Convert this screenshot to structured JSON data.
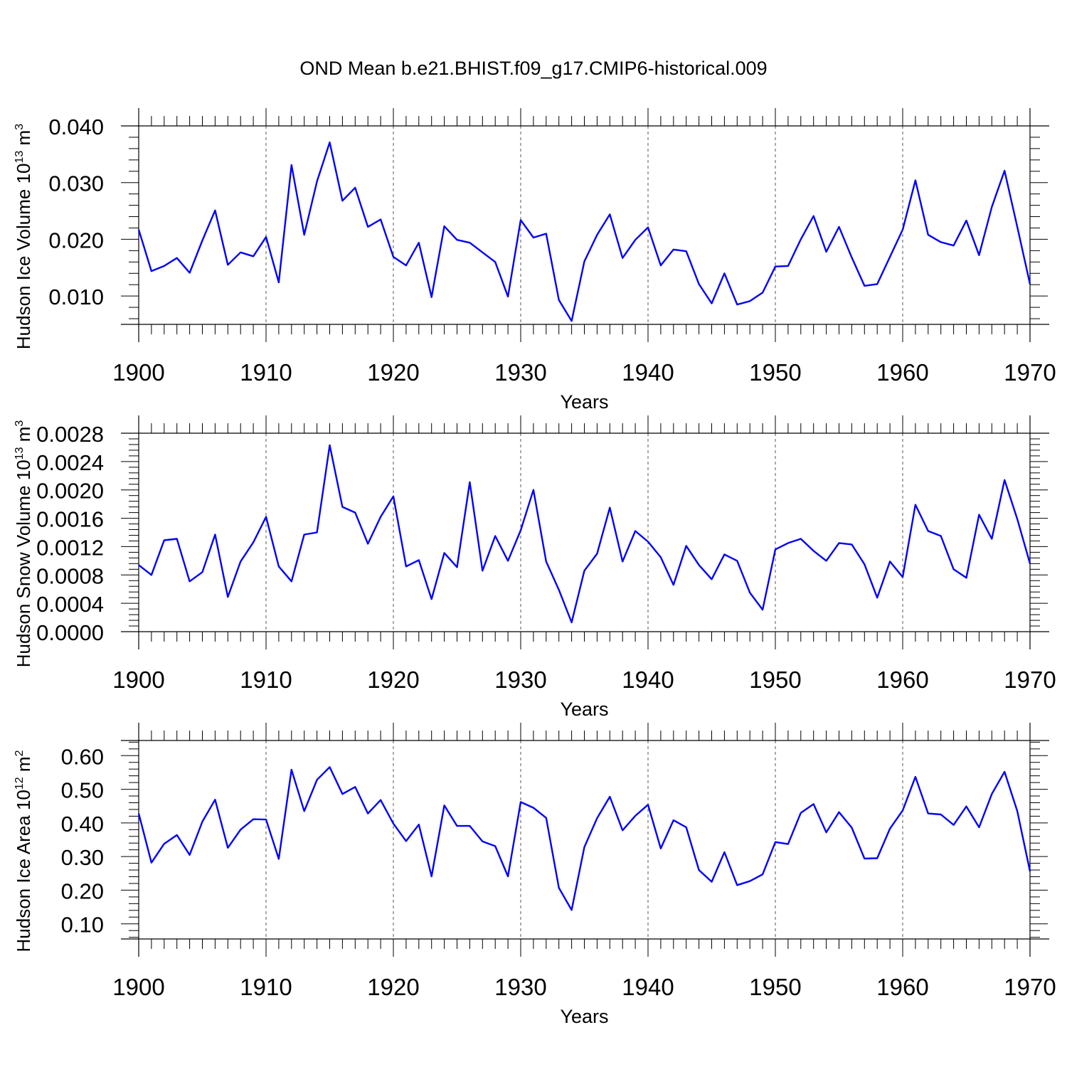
{
  "title": "OND Mean b.e21.BHIST.f09_g17.CMIP6-historical.009",
  "colors": {
    "line": "#0000ff",
    "axis": "#000000",
    "grid": "#555555"
  },
  "chart_data": [
    {
      "type": "line",
      "ylabel": "Hudson Ice Volume 10",
      "ylabel_exp": "13",
      "ylabel_unit": "m",
      "ylabel_unit_exp": "3",
      "xlabel": "Years",
      "xlim": [
        1900,
        1970
      ],
      "ylim": [
        0.005,
        0.04
      ],
      "yticks": [
        0.01,
        0.02,
        0.03,
        0.04
      ],
      "ytick_labels": [
        "0.010",
        "0.020",
        "0.030",
        "0.040"
      ],
      "xticks": [
        1900,
        1910,
        1920,
        1930,
        1940,
        1950,
        1960,
        1970
      ],
      "xtick_labels": [
        "1900",
        "1910",
        "1920",
        "1930",
        "1940",
        "1950",
        "1960",
        "1970"
      ],
      "grid": "vertical dashed at decades",
      "x": [
        1900,
        1901,
        1902,
        1903,
        1904,
        1905,
        1906,
        1907,
        1908,
        1909,
        1910,
        1911,
        1912,
        1913,
        1914,
        1915,
        1916,
        1917,
        1918,
        1919,
        1920,
        1921,
        1922,
        1923,
        1924,
        1925,
        1926,
        1927,
        1928,
        1929,
        1930,
        1931,
        1932,
        1933,
        1934,
        1935,
        1936,
        1937,
        1938,
        1939,
        1940,
        1941,
        1942,
        1943,
        1944,
        1945,
        1946,
        1947,
        1948,
        1949,
        1950,
        1951,
        1952,
        1953,
        1954,
        1955,
        1956,
        1957,
        1958,
        1959,
        1960,
        1961,
        1962,
        1963,
        1964,
        1965,
        1966,
        1967,
        1968,
        1969,
        1970
      ],
      "values": [
        0.0217,
        0.0144,
        0.0153,
        0.0167,
        0.0141,
        0.0198,
        0.0251,
        0.0155,
        0.0177,
        0.017,
        0.0204,
        0.0124,
        0.0331,
        0.0208,
        0.0302,
        0.0371,
        0.0268,
        0.0291,
        0.0222,
        0.0235,
        0.0169,
        0.0154,
        0.0194,
        0.0098,
        0.0223,
        0.0199,
        0.0194,
        0.0177,
        0.016,
        0.0099,
        0.0234,
        0.0203,
        0.021,
        0.0093,
        0.0056,
        0.0161,
        0.0208,
        0.0244,
        0.0167,
        0.0199,
        0.0221,
        0.0154,
        0.0182,
        0.0179,
        0.0121,
        0.0087,
        0.014,
        0.0085,
        0.0091,
        0.0106,
        0.0152,
        0.0153,
        0.02,
        0.0241,
        0.0178,
        0.0222,
        0.0168,
        0.0118,
        0.0121,
        0.0169,
        0.0217,
        0.0304,
        0.0208,
        0.0195,
        0.0189,
        0.0233,
        0.0172,
        0.0257,
        0.0321,
        0.0222,
        0.0121
      ]
    },
    {
      "type": "line",
      "ylabel": "Hudson Snow Volume 10",
      "ylabel_exp": "13",
      "ylabel_unit": "m",
      "ylabel_unit_exp": "3",
      "xlabel": "Years",
      "xlim": [
        1900,
        1970
      ],
      "ylim": [
        0.0,
        0.0028
      ],
      "yticks": [
        0.0,
        0.0004,
        0.0008,
        0.0012,
        0.0016,
        0.002,
        0.0024,
        0.0028
      ],
      "ytick_labels": [
        "0.0000",
        "0.0004",
        "0.0008",
        "0.0012",
        "0.0016",
        "0.0020",
        "0.0024",
        "0.0028"
      ],
      "xticks": [
        1900,
        1910,
        1920,
        1930,
        1940,
        1950,
        1960,
        1970
      ],
      "xtick_labels": [
        "1900",
        "1910",
        "1920",
        "1930",
        "1940",
        "1950",
        "1960",
        "1970"
      ],
      "grid": "vertical dashed at decades",
      "x": [
        1900,
        1901,
        1902,
        1903,
        1904,
        1905,
        1906,
        1907,
        1908,
        1909,
        1910,
        1911,
        1912,
        1913,
        1914,
        1915,
        1916,
        1917,
        1918,
        1919,
        1920,
        1921,
        1922,
        1923,
        1924,
        1925,
        1926,
        1927,
        1928,
        1929,
        1930,
        1931,
        1932,
        1933,
        1934,
        1935,
        1936,
        1937,
        1938,
        1939,
        1940,
        1941,
        1942,
        1943,
        1944,
        1945,
        1946,
        1947,
        1948,
        1949,
        1950,
        1951,
        1952,
        1953,
        1954,
        1955,
        1956,
        1957,
        1958,
        1959,
        1960,
        1961,
        1962,
        1963,
        1964,
        1965,
        1966,
        1967,
        1968,
        1969,
        1970
      ],
      "values": [
        0.00094,
        0.0008,
        0.00129,
        0.00131,
        0.00071,
        0.00084,
        0.00137,
        0.00049,
        0.00099,
        0.00126,
        0.00162,
        0.00092,
        0.00071,
        0.00137,
        0.0014,
        0.00263,
        0.00176,
        0.00168,
        0.00124,
        0.00162,
        0.00191,
        0.00092,
        0.00101,
        0.00046,
        0.00111,
        0.00091,
        0.00211,
        0.00086,
        0.00135,
        0.001,
        0.00143,
        0.002,
        0.00099,
        0.00059,
        0.00013,
        0.00086,
        0.0011,
        0.00175,
        0.00099,
        0.00142,
        0.00127,
        0.00105,
        0.00066,
        0.00121,
        0.00094,
        0.00074,
        0.00109,
        0.001,
        0.00055,
        0.00031,
        0.00116,
        0.00125,
        0.00131,
        0.00114,
        0.001,
        0.00125,
        0.00123,
        0.00095,
        0.00048,
        0.00099,
        0.00077,
        0.00179,
        0.00142,
        0.00135,
        0.00088,
        0.00076,
        0.00165,
        0.00131,
        0.00214,
        0.00159,
        0.00096
      ]
    },
    {
      "type": "line",
      "ylabel": "Hudson Ice Area 10",
      "ylabel_exp": "12",
      "ylabel_unit": "m",
      "ylabel_unit_exp": "2",
      "xlabel": "Years",
      "xlim": [
        1900,
        1970
      ],
      "ylim": [
        0.055,
        0.645
      ],
      "yticks": [
        0.1,
        0.2,
        0.3,
        0.4,
        0.5,
        0.6
      ],
      "ytick_labels": [
        "0.10",
        "0.20",
        "0.30",
        "0.40",
        "0.50",
        "0.60"
      ],
      "xticks": [
        1900,
        1910,
        1920,
        1930,
        1940,
        1950,
        1960,
        1970
      ],
      "xtick_labels": [
        "1900",
        "1910",
        "1920",
        "1930",
        "1940",
        "1950",
        "1960",
        "1970"
      ],
      "grid": "vertical dashed at decades",
      "x": [
        1900,
        1901,
        1902,
        1903,
        1904,
        1905,
        1906,
        1907,
        1908,
        1909,
        1910,
        1911,
        1912,
        1913,
        1914,
        1915,
        1916,
        1917,
        1918,
        1919,
        1920,
        1921,
        1922,
        1923,
        1924,
        1925,
        1926,
        1927,
        1928,
        1929,
        1930,
        1931,
        1932,
        1933,
        1934,
        1935,
        1936,
        1937,
        1938,
        1939,
        1940,
        1941,
        1942,
        1943,
        1944,
        1945,
        1946,
        1947,
        1948,
        1949,
        1950,
        1951,
        1952,
        1953,
        1954,
        1955,
        1956,
        1957,
        1958,
        1959,
        1960,
        1961,
        1962,
        1963,
        1964,
        1965,
        1966,
        1967,
        1968,
        1969,
        1970
      ],
      "values": [
        0.428,
        0.282,
        0.338,
        0.364,
        0.305,
        0.404,
        0.469,
        0.326,
        0.38,
        0.411,
        0.41,
        0.293,
        0.558,
        0.435,
        0.528,
        0.566,
        0.486,
        0.507,
        0.428,
        0.468,
        0.398,
        0.346,
        0.395,
        0.241,
        0.452,
        0.391,
        0.391,
        0.345,
        0.331,
        0.241,
        0.462,
        0.445,
        0.415,
        0.207,
        0.141,
        0.328,
        0.414,
        0.478,
        0.378,
        0.421,
        0.454,
        0.324,
        0.408,
        0.387,
        0.26,
        0.225,
        0.313,
        0.215,
        0.227,
        0.247,
        0.343,
        0.337,
        0.43,
        0.456,
        0.372,
        0.432,
        0.386,
        0.294,
        0.295,
        0.383,
        0.437,
        0.537,
        0.428,
        0.425,
        0.394,
        0.449,
        0.387,
        0.486,
        0.552,
        0.435,
        0.256
      ]
    }
  ]
}
